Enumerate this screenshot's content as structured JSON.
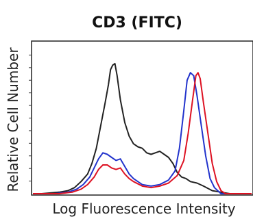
{
  "chart_data": {
    "type": "line",
    "title": "CD3 (FITC)",
    "xlabel": "Log Fluorescence Intensity",
    "ylabel": "Relative Cell Number",
    "x_scale": "log",
    "xlim": [
      0,
      1
    ],
    "ylim": [
      0,
      1
    ],
    "grid": false,
    "y_minor_ticks": 11,
    "series": [
      {
        "color": "#222222",
        "points": [
          [
            0.0,
            0.0
          ],
          [
            0.04,
            0.0
          ],
          [
            0.08,
            0.005
          ],
          [
            0.12,
            0.01
          ],
          [
            0.16,
            0.02
          ],
          [
            0.19,
            0.04
          ],
          [
            0.22,
            0.08
          ],
          [
            0.25,
            0.13
          ],
          [
            0.27,
            0.2
          ],
          [
            0.29,
            0.3
          ],
          [
            0.31,
            0.45
          ],
          [
            0.33,
            0.6
          ],
          [
            0.345,
            0.72
          ],
          [
            0.355,
            0.82
          ],
          [
            0.365,
            0.85
          ],
          [
            0.375,
            0.86
          ],
          [
            0.385,
            0.78
          ],
          [
            0.4,
            0.62
          ],
          [
            0.42,
            0.47
          ],
          [
            0.44,
            0.38
          ],
          [
            0.46,
            0.33
          ],
          [
            0.48,
            0.31
          ],
          [
            0.5,
            0.3
          ],
          [
            0.52,
            0.27
          ],
          [
            0.54,
            0.26
          ],
          [
            0.56,
            0.27
          ],
          [
            0.58,
            0.28
          ],
          [
            0.6,
            0.26
          ],
          [
            0.62,
            0.24
          ],
          [
            0.64,
            0.2
          ],
          [
            0.66,
            0.14
          ],
          [
            0.68,
            0.11
          ],
          [
            0.7,
            0.1
          ],
          [
            0.72,
            0.08
          ],
          [
            0.75,
            0.07
          ],
          [
            0.78,
            0.05
          ],
          [
            0.82,
            0.02
          ],
          [
            0.86,
            0.01
          ],
          [
            0.9,
            0.0
          ],
          [
            1.0,
            0.0
          ]
        ]
      },
      {
        "color": "#2233cc",
        "points": [
          [
            0.0,
            0.0
          ],
          [
            0.1,
            0.0
          ],
          [
            0.16,
            0.01
          ],
          [
            0.2,
            0.03
          ],
          [
            0.23,
            0.06
          ],
          [
            0.26,
            0.11
          ],
          [
            0.28,
            0.17
          ],
          [
            0.3,
            0.23
          ],
          [
            0.32,
            0.27
          ],
          [
            0.34,
            0.26
          ],
          [
            0.36,
            0.24
          ],
          [
            0.38,
            0.22
          ],
          [
            0.4,
            0.23
          ],
          [
            0.42,
            0.18
          ],
          [
            0.44,
            0.13
          ],
          [
            0.46,
            0.1
          ],
          [
            0.5,
            0.06
          ],
          [
            0.54,
            0.05
          ],
          [
            0.58,
            0.06
          ],
          [
            0.62,
            0.09
          ],
          [
            0.65,
            0.15
          ],
          [
            0.67,
            0.3
          ],
          [
            0.69,
            0.55
          ],
          [
            0.705,
            0.75
          ],
          [
            0.72,
            0.8
          ],
          [
            0.735,
            0.78
          ],
          [
            0.75,
            0.65
          ],
          [
            0.77,
            0.45
          ],
          [
            0.79,
            0.25
          ],
          [
            0.81,
            0.1
          ],
          [
            0.83,
            0.04
          ],
          [
            0.86,
            0.0
          ],
          [
            1.0,
            0.0
          ]
        ]
      },
      {
        "color": "#dd1122",
        "points": [
          [
            0.0,
            0.0
          ],
          [
            0.12,
            0.0
          ],
          [
            0.18,
            0.01
          ],
          [
            0.22,
            0.03
          ],
          [
            0.25,
            0.06
          ],
          [
            0.28,
            0.11
          ],
          [
            0.3,
            0.16
          ],
          [
            0.32,
            0.19
          ],
          [
            0.34,
            0.19
          ],
          [
            0.36,
            0.17
          ],
          [
            0.38,
            0.16
          ],
          [
            0.4,
            0.17
          ],
          [
            0.42,
            0.13
          ],
          [
            0.44,
            0.1
          ],
          [
            0.46,
            0.08
          ],
          [
            0.5,
            0.05
          ],
          [
            0.54,
            0.04
          ],
          [
            0.58,
            0.05
          ],
          [
            0.62,
            0.07
          ],
          [
            0.66,
            0.12
          ],
          [
            0.69,
            0.22
          ],
          [
            0.71,
            0.4
          ],
          [
            0.73,
            0.62
          ],
          [
            0.745,
            0.78
          ],
          [
            0.755,
            0.8
          ],
          [
            0.765,
            0.76
          ],
          [
            0.78,
            0.6
          ],
          [
            0.8,
            0.4
          ],
          [
            0.82,
            0.2
          ],
          [
            0.84,
            0.08
          ],
          [
            0.86,
            0.02
          ],
          [
            0.88,
            0.0
          ],
          [
            1.0,
            0.0
          ]
        ]
      }
    ]
  }
}
